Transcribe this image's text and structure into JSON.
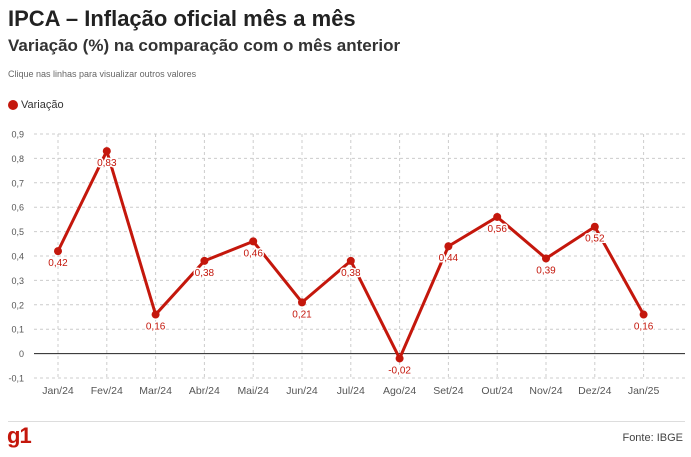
{
  "header": {
    "title": "IPCA – Inflação oficial mês a mês",
    "subtitle": "Variação (%) na comparação com o mês anterior",
    "hint": "Clique nas linhas para visualizar outros valores"
  },
  "footer": {
    "logo": "g1",
    "source": "Fonte: IBGE"
  },
  "colors": {
    "series": "#c4170c",
    "grid": "#cccccc",
    "zero_line": "#222222",
    "axis_text": "#555555",
    "logo": "#c4170c"
  },
  "chart_data": {
    "type": "line",
    "title": "IPCA – Inflação oficial mês a mês",
    "subtitle": "Variação (%) na comparação com o mês anterior",
    "xlabel": "",
    "ylabel": "",
    "categories": [
      "Jan/24",
      "Fev/24",
      "Mar/24",
      "Abr/24",
      "Mai/24",
      "Jun/24",
      "Jul/24",
      "Ago/24",
      "Set/24",
      "Out/24",
      "Nov/24",
      "Dez/24",
      "Jan/25"
    ],
    "series": [
      {
        "name": "Variação",
        "values": [
          0.42,
          0.83,
          0.16,
          0.38,
          0.46,
          0.21,
          0.38,
          -0.02,
          0.44,
          0.56,
          0.39,
          0.52,
          0.16
        ],
        "labels": [
          "0,42",
          "0,83",
          "0,16",
          "0,38",
          "0,46",
          "0,21",
          "0,38",
          "-0,02",
          "0,44",
          "0,56",
          "0,39",
          "0,52",
          "0,16"
        ]
      }
    ],
    "yticks": [
      -0.1,
      0,
      0.1,
      0.2,
      0.3,
      0.4,
      0.5,
      0.6,
      0.7,
      0.8,
      0.9
    ],
    "ytick_labels": [
      "-0,1",
      "0",
      "0,1",
      "0,2",
      "0,3",
      "0,4",
      "0,5",
      "0,6",
      "0,7",
      "0,8",
      "0,9"
    ],
    "ylim": [
      -0.1,
      0.9
    ],
    "grid": true,
    "legend": "top-left"
  }
}
